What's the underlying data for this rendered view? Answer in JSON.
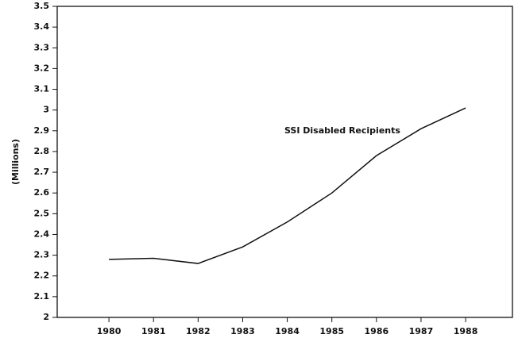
{
  "chart_data": {
    "type": "line",
    "y_label": "(Millions)",
    "annotation": "SSI Disabled Recipients",
    "x": [
      1980,
      1981,
      1982,
      1983,
      1984,
      1985,
      1986,
      1987,
      1988
    ],
    "series": [
      {
        "name": "SSI Disabled Recipients",
        "color": "#111111",
        "values": [
          2.28,
          2.285,
          2.26,
          2.34,
          2.46,
          2.6,
          2.78,
          2.91,
          3.01
        ]
      }
    ],
    "xlim": [
      1978.84,
      1989.05
    ],
    "xticks": [
      1980,
      1981,
      1982,
      1983,
      1984,
      1985,
      1986,
      1987,
      1988
    ],
    "ylim": [
      2,
      3.5
    ],
    "yticks": [
      2,
      2.1,
      2.2,
      2.3,
      2.4,
      2.5,
      2.6,
      2.7,
      2.8,
      2.9,
      3,
      3.1,
      3.2,
      3.3,
      3.4,
      3.5
    ]
  }
}
